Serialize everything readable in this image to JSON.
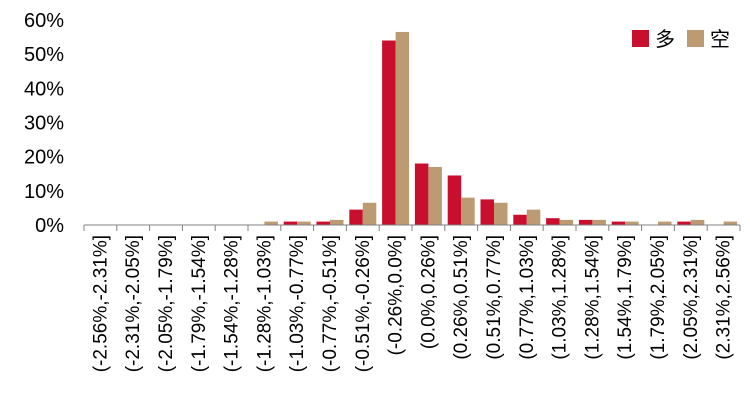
{
  "colors": {
    "long": "#c8102e",
    "short": "#bc9b72",
    "axis": "#808080",
    "text": "#000000"
  },
  "chart_data": {
    "type": "bar",
    "title": "",
    "xlabel": "",
    "ylabel": "",
    "ylim": [
      0,
      0.6
    ],
    "yticks": [
      0,
      0.1,
      0.2,
      0.3,
      0.4,
      0.5,
      0.6
    ],
    "ytick_labels": [
      "0%",
      "10%",
      "20%",
      "30%",
      "40%",
      "50%",
      "60%"
    ],
    "grid": false,
    "legend_position": "top-right",
    "categories": [
      "(-2.56%,-2.31%]",
      "(-2.31%,-2.05%]",
      "(-2.05%,-1.79%]",
      "(-1.79%,-1.54%]",
      "(-1.54%,-1.28%]",
      "(-1.28%,-1.03%]",
      "(-1.03%,-0.77%]",
      "(-0.77%,-0.51%]",
      "(-0.51%,-0.26%]",
      "(-0.26%,0.0%]",
      "(0.0%,0.26%]",
      "(0.26%,0.51%]",
      "(0.51%,0.77%]",
      "(0.77%,1.03%]",
      "(1.03%,1.28%]",
      "(1.28%,1.54%]",
      "(1.54%,1.79%]",
      "(1.79%,2.05%]",
      "(2.05%,2.31%]",
      "(2.31%,2.56%]"
    ],
    "series": [
      {
        "name": "多",
        "color": "#c8102e",
        "values": [
          0,
          0,
          0,
          0,
          0,
          0,
          0.01,
          0.01,
          0.045,
          0.54,
          0.18,
          0.145,
          0.075,
          0.03,
          0.02,
          0.015,
          0.01,
          0,
          0.01,
          0
        ]
      },
      {
        "name": "空",
        "color": "#bc9b72",
        "values": [
          0,
          0,
          0,
          0,
          0,
          0.01,
          0.01,
          0.015,
          0.065,
          0.565,
          0.17,
          0.08,
          0.065,
          0.045,
          0.015,
          0.015,
          0.01,
          0.01,
          0.015,
          0.01
        ]
      }
    ]
  }
}
